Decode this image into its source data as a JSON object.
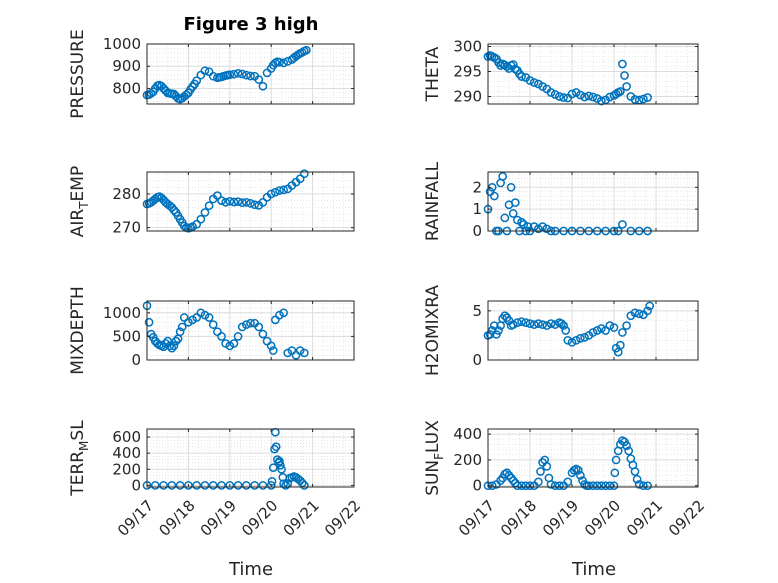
{
  "figure": {
    "title": "Figure 3 high",
    "x_axis_label": "Time"
  },
  "chart_data": [
    {
      "type": "scatter",
      "name": "PRESSURE",
      "ylabel": "PRESSURE",
      "xlabel": "",
      "ylim": [
        730,
        1000
      ],
      "yticks": [
        800,
        900,
        1000
      ],
      "xlim": [
        "09/17",
        "09/22"
      ],
      "xticks": [],
      "grid": true,
      "marker_color": "#0072BD",
      "x": [
        0,
        0.05,
        0.1,
        0.15,
        0.2,
        0.25,
        0.3,
        0.35,
        0.4,
        0.45,
        0.5,
        0.55,
        0.6,
        0.65,
        0.7,
        0.75,
        0.8,
        0.85,
        0.9,
        0.95,
        1.0,
        1.05,
        1.1,
        1.15,
        1.2,
        1.3,
        1.4,
        1.5,
        1.6,
        1.7,
        1.75,
        1.8,
        1.85,
        1.9,
        1.95,
        2.0,
        2.1,
        2.2,
        2.3,
        2.4,
        2.5,
        2.6,
        2.7,
        2.8,
        2.9,
        3.0,
        3.05,
        3.1,
        3.15,
        3.2,
        3.3,
        3.4,
        3.5,
        3.55,
        3.6,
        3.65,
        3.7,
        3.75,
        3.8,
        3.85
      ],
      "y": [
        770,
        772,
        778,
        785,
        800,
        812,
        815,
        810,
        800,
        790,
        780,
        778,
        776,
        775,
        765,
        755,
        752,
        756,
        764,
        772,
        780,
        795,
        808,
        820,
        835,
        860,
        880,
        875,
        855,
        848,
        850,
        852,
        855,
        858,
        860,
        862,
        864,
        868,
        865,
        860,
        856,
        855,
        840,
        810,
        870,
        890,
        905,
        915,
        920,
        918,
        915,
        922,
        930,
        938,
        945,
        952,
        958,
        962,
        968,
        972
      ]
    },
    {
      "type": "scatter",
      "name": "THETA",
      "ylabel": "THETA",
      "xlabel": "",
      "ylim": [
        288.5,
        300.5
      ],
      "yticks": [
        290,
        295,
        300
      ],
      "xlim": [
        "09/17",
        "09/22"
      ],
      "xticks": [],
      "grid": true,
      "marker_color": "#0072BD",
      "x": [
        0,
        0.05,
        0.1,
        0.15,
        0.2,
        0.25,
        0.3,
        0.35,
        0.4,
        0.45,
        0.5,
        0.55,
        0.6,
        0.65,
        0.7,
        0.75,
        0.8,
        0.9,
        1.0,
        1.1,
        1.2,
        1.3,
        1.4,
        1.5,
        1.6,
        1.7,
        1.8,
        1.9,
        2.0,
        2.1,
        2.2,
        2.3,
        2.4,
        2.5,
        2.6,
        2.7,
        2.8,
        2.9,
        3.0,
        3.05,
        3.1,
        3.15,
        3.2,
        3.25,
        3.3,
        3.4,
        3.5,
        3.6,
        3.7,
        3.8
      ],
      "y": [
        298,
        298.2,
        298,
        297.8,
        297.5,
        296.8,
        296.2,
        296.5,
        296.3,
        296,
        295.6,
        296.2,
        296.4,
        295.5,
        295.2,
        294.5,
        294,
        293.8,
        293.2,
        292.8,
        292.5,
        292,
        291.5,
        290.8,
        290.4,
        290,
        289.8,
        289.7,
        290.5,
        290.8,
        290.3,
        289.9,
        290.1,
        289.9,
        289.6,
        289.1,
        289.3,
        289.9,
        290.2,
        290.5,
        290.8,
        291,
        296.5,
        294.2,
        292,
        290,
        289.4,
        289.3,
        289.5,
        289.8
      ]
    },
    {
      "type": "scatter",
      "name": "AIR_TEMP",
      "ylabel": "AIR_TEMP",
      "xlabel": "",
      "ylim": [
        269,
        286.5
      ],
      "yticks": [
        270,
        280
      ],
      "xlim": [
        "09/17",
        "09/22"
      ],
      "xticks": [],
      "grid": true,
      "marker_color": "#0072BD",
      "x": [
        0,
        0.05,
        0.1,
        0.15,
        0.2,
        0.25,
        0.3,
        0.35,
        0.4,
        0.45,
        0.5,
        0.55,
        0.6,
        0.65,
        0.7,
        0.75,
        0.8,
        0.85,
        0.9,
        0.95,
        1.0,
        1.05,
        1.1,
        1.2,
        1.3,
        1.4,
        1.5,
        1.6,
        1.7,
        1.8,
        1.9,
        2.0,
        2.1,
        2.2,
        2.3,
        2.4,
        2.5,
        2.6,
        2.7,
        2.8,
        2.9,
        3.0,
        3.1,
        3.2,
        3.3,
        3.4,
        3.5,
        3.6,
        3.7,
        3.8
      ],
      "y": [
        277,
        277.2,
        277.5,
        278,
        278.5,
        279,
        279.2,
        278.8,
        278.2,
        277.5,
        277,
        276.5,
        276,
        275.2,
        274.5,
        273.5,
        272.5,
        271.5,
        270.5,
        270,
        269.8,
        270,
        270.3,
        271,
        272.5,
        274.5,
        276.5,
        278.5,
        279.5,
        278,
        277.5,
        277.8,
        277.6,
        277.7,
        277.4,
        277.5,
        277.2,
        276.8,
        276.6,
        277.5,
        279,
        280,
        280.5,
        281,
        281.2,
        281.5,
        282.5,
        283.5,
        284.5,
        286
      ]
    },
    {
      "type": "scatter",
      "name": "RAINFALL",
      "ylabel": "RAINFALL",
      "xlabel": "",
      "ylim": [
        0,
        2.7
      ],
      "yticks": [
        0,
        1,
        2
      ],
      "xlim": [
        "09/17",
        "09/22"
      ],
      "xticks": [],
      "grid": true,
      "marker_color": "#0072BD",
      "x": [
        0,
        0.05,
        0.1,
        0.15,
        0.2,
        0.25,
        0.3,
        0.35,
        0.4,
        0.45,
        0.5,
        0.55,
        0.6,
        0.65,
        0.7,
        0.75,
        0.8,
        0.85,
        0.9,
        0.95,
        1.0,
        1.1,
        1.2,
        1.3,
        1.4,
        1.5,
        1.6,
        1.8,
        2.0,
        2.2,
        2.4,
        2.6,
        2.8,
        3.0,
        3.1,
        3.2,
        3.4,
        3.6,
        3.8
      ],
      "y": [
        1.0,
        1.8,
        2.0,
        1.6,
        0,
        0,
        2.2,
        2.5,
        0.6,
        0,
        1.2,
        2.0,
        0.8,
        1.3,
        0.5,
        0,
        0.4,
        0.3,
        0,
        0.2,
        0,
        0.2,
        0.1,
        0.2,
        0.1,
        0,
        0,
        0,
        0,
        0,
        0,
        0,
        0,
        0,
        0,
        0.3,
        0,
        0,
        0
      ]
    },
    {
      "type": "scatter",
      "name": "MIXDEPTH",
      "ylabel": "MIXDEPTH",
      "xlabel": "",
      "ylim": [
        0,
        1250
      ],
      "yticks": [
        0,
        500,
        1000
      ],
      "xlim": [
        "09/17",
        "09/22"
      ],
      "xticks": [],
      "grid": true,
      "marker_color": "#0072BD",
      "x": [
        0,
        0.05,
        0.1,
        0.15,
        0.2,
        0.25,
        0.3,
        0.35,
        0.4,
        0.45,
        0.5,
        0.55,
        0.6,
        0.65,
        0.7,
        0.75,
        0.8,
        0.85,
        0.9,
        1.0,
        1.1,
        1.2,
        1.3,
        1.4,
        1.5,
        1.6,
        1.7,
        1.8,
        1.9,
        2.0,
        2.1,
        2.2,
        2.3,
        2.4,
        2.5,
        2.6,
        2.7,
        2.8,
        2.9,
        3.0,
        3.05,
        3.1,
        3.2,
        3.3,
        3.4,
        3.5,
        3.6,
        3.7,
        3.8
      ],
      "y": [
        1150,
        800,
        550,
        480,
        400,
        350,
        320,
        300,
        280,
        350,
        400,
        300,
        250,
        300,
        400,
        450,
        600,
        700,
        900,
        800,
        850,
        900,
        1000,
        950,
        900,
        750,
        600,
        500,
        350,
        300,
        350,
        500,
        700,
        750,
        780,
        780,
        700,
        550,
        400,
        300,
        200,
        850,
        950,
        1000,
        150,
        200,
        100,
        200,
        150
      ]
    },
    {
      "type": "scatter",
      "name": "H2OMIXRA",
      "ylabel": "H2OMIXRA",
      "xlabel": "",
      "ylim": [
        0,
        6
      ],
      "yticks": [
        0,
        5
      ],
      "xlim": [
        "09/17",
        "09/22"
      ],
      "xticks": [],
      "grid": true,
      "marker_color": "#0072BD",
      "x": [
        0,
        0.05,
        0.1,
        0.15,
        0.2,
        0.25,
        0.3,
        0.35,
        0.4,
        0.45,
        0.5,
        0.55,
        0.6,
        0.7,
        0.8,
        0.9,
        1.0,
        1.1,
        1.2,
        1.3,
        1.4,
        1.5,
        1.6,
        1.7,
        1.75,
        1.8,
        1.85,
        1.9,
        2.0,
        2.1,
        2.2,
        2.3,
        2.4,
        2.5,
        2.6,
        2.7,
        2.8,
        2.9,
        3.0,
        3.05,
        3.1,
        3.15,
        3.2,
        3.3,
        3.4,
        3.5,
        3.6,
        3.7,
        3.8,
        3.85
      ],
      "y": [
        2.5,
        2.6,
        3.0,
        3.5,
        2.6,
        3.0,
        3.5,
        4.2,
        4.5,
        4.3,
        4.0,
        3.5,
        3.6,
        3.8,
        3.9,
        3.8,
        3.7,
        3.6,
        3.7,
        3.6,
        3.5,
        3.7,
        3.6,
        3.8,
        3.7,
        3.5,
        3.0,
        2.0,
        1.8,
        2.0,
        2.2,
        2.3,
        2.5,
        2.8,
        3.0,
        3.2,
        3.0,
        3.5,
        3.3,
        1.2,
        0.8,
        1.5,
        2.8,
        3.5,
        4.5,
        4.8,
        4.7,
        4.6,
        5.0,
        5.5
      ]
    },
    {
      "type": "scatter",
      "name": "TERR_MSL",
      "ylabel": "TERR_MSL",
      "xlabel": "Time",
      "ylim": [
        -20,
        700
      ],
      "yticks": [
        0,
        200,
        400,
        600
      ],
      "xlim": [
        "09/17",
        "09/22"
      ],
      "xticks": [
        "09/17",
        "09/18",
        "09/19",
        "09/20",
        "09/21",
        "09/22"
      ],
      "grid": true,
      "marker_color": "#0072BD",
      "x": [
        0,
        0.2,
        0.4,
        0.6,
        0.8,
        1.0,
        1.2,
        1.4,
        1.6,
        1.8,
        2.0,
        2.2,
        2.4,
        2.6,
        2.8,
        3.0,
        3.02,
        3.05,
        3.08,
        3.1,
        3.12,
        3.15,
        3.18,
        3.2,
        3.22,
        3.25,
        3.28,
        3.3,
        3.35,
        3.4,
        3.45,
        3.5,
        3.55,
        3.6,
        3.65,
        3.7,
        3.75,
        3.8
      ],
      "y": [
        0,
        0,
        0,
        0,
        0,
        0,
        0,
        0,
        0,
        0,
        0,
        0,
        0,
        0,
        0,
        0,
        50,
        220,
        450,
        660,
        480,
        320,
        280,
        300,
        250,
        200,
        100,
        20,
        0,
        20,
        90,
        100,
        110,
        100,
        80,
        60,
        30,
        0
      ]
    },
    {
      "type": "scatter",
      "name": "SUN_FLUX",
      "ylabel": "SUN_FLUX",
      "xlabel": "Time",
      "ylim": [
        -10,
        440
      ],
      "yticks": [
        0,
        200,
        400
      ],
      "xlim": [
        "09/17",
        "09/22"
      ],
      "xticks": [
        "09/17",
        "09/18",
        "09/19",
        "09/20",
        "09/21",
        "09/22"
      ],
      "grid": true,
      "marker_color": "#0072BD",
      "x": [
        0,
        0.1,
        0.2,
        0.3,
        0.35,
        0.4,
        0.45,
        0.5,
        0.55,
        0.6,
        0.65,
        0.7,
        0.8,
        0.9,
        1.0,
        1.1,
        1.2,
        1.25,
        1.3,
        1.35,
        1.4,
        1.45,
        1.5,
        1.6,
        1.7,
        1.8,
        1.9,
        2.0,
        2.05,
        2.1,
        2.15,
        2.2,
        2.25,
        2.3,
        2.35,
        2.4,
        2.5,
        2.6,
        2.7,
        2.8,
        2.9,
        3.0,
        3.02,
        3.05,
        3.1,
        3.15,
        3.2,
        3.25,
        3.3,
        3.35,
        3.4,
        3.45,
        3.5,
        3.55,
        3.6,
        3.7,
        3.8
      ],
      "y": [
        0,
        0,
        10,
        40,
        60,
        90,
        100,
        80,
        60,
        40,
        20,
        0,
        0,
        0,
        0,
        0,
        30,
        110,
        180,
        200,
        150,
        60,
        10,
        0,
        0,
        0,
        30,
        100,
        120,
        130,
        120,
        80,
        40,
        10,
        0,
        0,
        0,
        0,
        0,
        0,
        0,
        0,
        100,
        200,
        270,
        320,
        350,
        340,
        310,
        270,
        210,
        160,
        110,
        50,
        10,
        0,
        0
      ]
    }
  ]
}
